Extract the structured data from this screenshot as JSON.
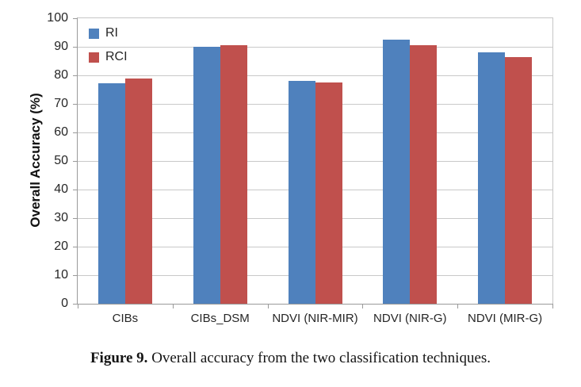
{
  "figure": {
    "caption_label": "Figure 9.",
    "caption_text": " Overall accuracy from the two classification techniques."
  },
  "chart_data": {
    "type": "bar",
    "title": "",
    "xlabel": "",
    "ylabel": "Overall Accuracy (%)",
    "categories": [
      "CIBs",
      "CIBs_DSM",
      "NDVI (NIR-MIR)",
      "NDVI (NIR-G)",
      "NDVI (MIR-G)"
    ],
    "series": [
      {
        "name": "RI",
        "color": "#4F81BD",
        "values": [
          77.2,
          90.0,
          78.0,
          92.6,
          88.0
        ]
      },
      {
        "name": "RCI",
        "color": "#C0504D",
        "values": [
          79.0,
          90.5,
          77.6,
          90.6,
          86.4
        ]
      }
    ],
    "ylim": [
      0,
      100
    ],
    "ytick_step": 10,
    "grid": true,
    "legend_position": "top-left-inside",
    "colors": {
      "gridline": "#c9c9c9",
      "axis": "#9a9a9a",
      "tick_text": "#262626"
    }
  }
}
